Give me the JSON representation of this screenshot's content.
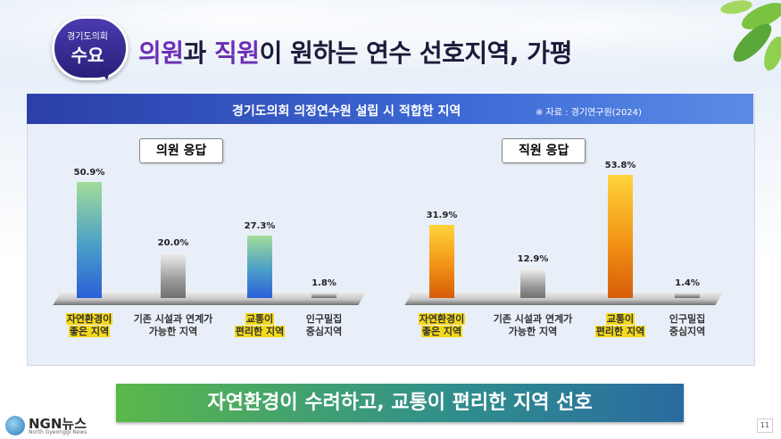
{
  "badge": {
    "small": "경기도의회",
    "big": "수요"
  },
  "headline": {
    "part1": "의원",
    "part2": "과 ",
    "part3": "직원",
    "part4": "이 원하는 연수 선호지역, 가평"
  },
  "panel": {
    "title": "경기도의회 의정연수원 설립 시 적합한 지역",
    "source": "※ 자료 : 경기연구원(2024)"
  },
  "colors": {
    "header_blue": "#2b3fa8",
    "highlight_purple": "#6a2fb5",
    "council_bar": "#2a5fd8",
    "staff_bar": "#f29316",
    "category_highlight": "#f4d81a"
  },
  "chart_data": [
    {
      "type": "bar",
      "title": "의원 응답",
      "categories": [
        "자연환경이 좋은 지역",
        "기존 시설과 연계가 가능한 지역",
        "교통이 편리한 지역",
        "인구밀집 중심지역"
      ],
      "category_lines": [
        [
          "자연환경이",
          "좋은 지역"
        ],
        [
          "기존 시설과 연계가",
          "가능한 지역"
        ],
        [
          "교통이",
          "편리한 지역"
        ],
        [
          "인구밀집",
          "중심지역"
        ]
      ],
      "highlighted": [
        true,
        false,
        true,
        false
      ],
      "values": [
        50.9,
        20.0,
        27.3,
        1.8
      ],
      "value_labels": [
        "50.9%",
        "20.0%",
        "27.3%",
        "1.8%"
      ],
      "unit": "%",
      "ylim": [
        0,
        60
      ]
    },
    {
      "type": "bar",
      "title": "직원 응답",
      "categories": [
        "자연환경이 좋은 지역",
        "기존 시설과 연계가 가능한 지역",
        "교통이 편리한 지역",
        "인구밀집 중심지역"
      ],
      "category_lines": [
        [
          "자연환경이",
          "좋은 지역"
        ],
        [
          "기존 시설과 연계가",
          "가능한 지역"
        ],
        [
          "교통이",
          "편리한 지역"
        ],
        [
          "인구밀집",
          "중심지역"
        ]
      ],
      "highlighted": [
        true,
        false,
        true,
        false
      ],
      "values": [
        31.9,
        12.9,
        53.8,
        1.4
      ],
      "value_labels": [
        "31.9%",
        "12.9%",
        "53.8%",
        "1.4%"
      ],
      "unit": "%",
      "ylim": [
        0,
        60
      ]
    }
  ],
  "banner": {
    "text": "자연환경이 수려하고, 교통이 편리한 지역 선호"
  },
  "footer": {
    "logo_name": "NGN뉴스",
    "logo_sub": "North Gyeonggi News",
    "page_number": "11"
  }
}
